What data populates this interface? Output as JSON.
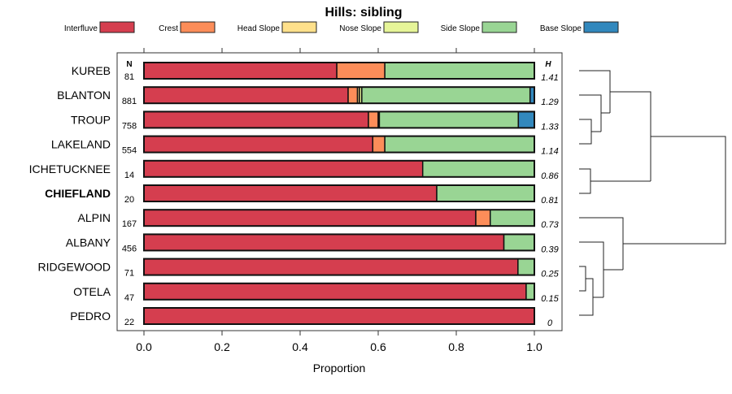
{
  "chart_data": {
    "type": "bar",
    "orientation": "horizontal-stacked",
    "title": "Hills: sibling",
    "xlabel": "Proportion",
    "xlim": [
      0,
      1
    ],
    "xticks": [
      "0.0",
      "0.2",
      "0.4",
      "0.6",
      "0.8",
      "1.0"
    ],
    "n_header": "N",
    "h_header": "H",
    "legend_position": "top",
    "series": [
      {
        "name": "Interfluve",
        "color": "#D53E4F"
      },
      {
        "name": "Crest",
        "color": "#FC8D59"
      },
      {
        "name": "Head Slope",
        "color": "#FEE08B"
      },
      {
        "name": "Nose Slope",
        "color": "#E6F598"
      },
      {
        "name": "Side Slope",
        "color": "#99D594"
      },
      {
        "name": "Base Slope",
        "color": "#3288BD"
      }
    ],
    "rows": [
      {
        "label": "KUREB",
        "n": "81",
        "h": "1.41",
        "highlight": false,
        "values": [
          0.494,
          0.123,
          0,
          0,
          0.383,
          0
        ]
      },
      {
        "label": "BLANTON",
        "n": "881",
        "h": "1.29",
        "highlight": false,
        "values": [
          0.523,
          0.024,
          0.005,
          0.006,
          0.431,
          0.011
        ]
      },
      {
        "label": "TROUP",
        "n": "758",
        "h": "1.33",
        "highlight": false,
        "values": [
          0.575,
          0.025,
          0.003,
          0,
          0.356,
          0.041
        ]
      },
      {
        "label": "LAKELAND",
        "n": "554",
        "h": "1.14",
        "highlight": false,
        "values": [
          0.586,
          0.031,
          0,
          0,
          0.383,
          0
        ]
      },
      {
        "label": "ICHETUCKNEE",
        "n": "14",
        "h": "0.86",
        "highlight": false,
        "values": [
          0.714,
          0,
          0,
          0,
          0.286,
          0
        ]
      },
      {
        "label": "CHIEFLAND",
        "n": "20",
        "h": "0.81",
        "highlight": true,
        "values": [
          0.75,
          0,
          0,
          0,
          0.25,
          0
        ]
      },
      {
        "label": "ALPIN",
        "n": "167",
        "h": "0.73",
        "highlight": false,
        "values": [
          0.85,
          0.037,
          0,
          0,
          0.113,
          0
        ]
      },
      {
        "label": "ALBANY",
        "n": "456",
        "h": "0.39",
        "highlight": false,
        "values": [
          0.922,
          0,
          0,
          0,
          0.078,
          0
        ]
      },
      {
        "label": "RIDGEWOOD",
        "n": "71",
        "h": "0.25",
        "highlight": false,
        "values": [
          0.958,
          0,
          0,
          0,
          0.042,
          0
        ]
      },
      {
        "label": "OTELA",
        "n": "47",
        "h": "0.15",
        "highlight": false,
        "values": [
          0.979,
          0,
          0,
          0,
          0.021,
          0
        ]
      },
      {
        "label": "PEDRO",
        "n": "22",
        "h": "0",
        "highlight": false,
        "values": [
          1,
          0,
          0,
          0,
          0,
          0
        ]
      }
    ]
  }
}
